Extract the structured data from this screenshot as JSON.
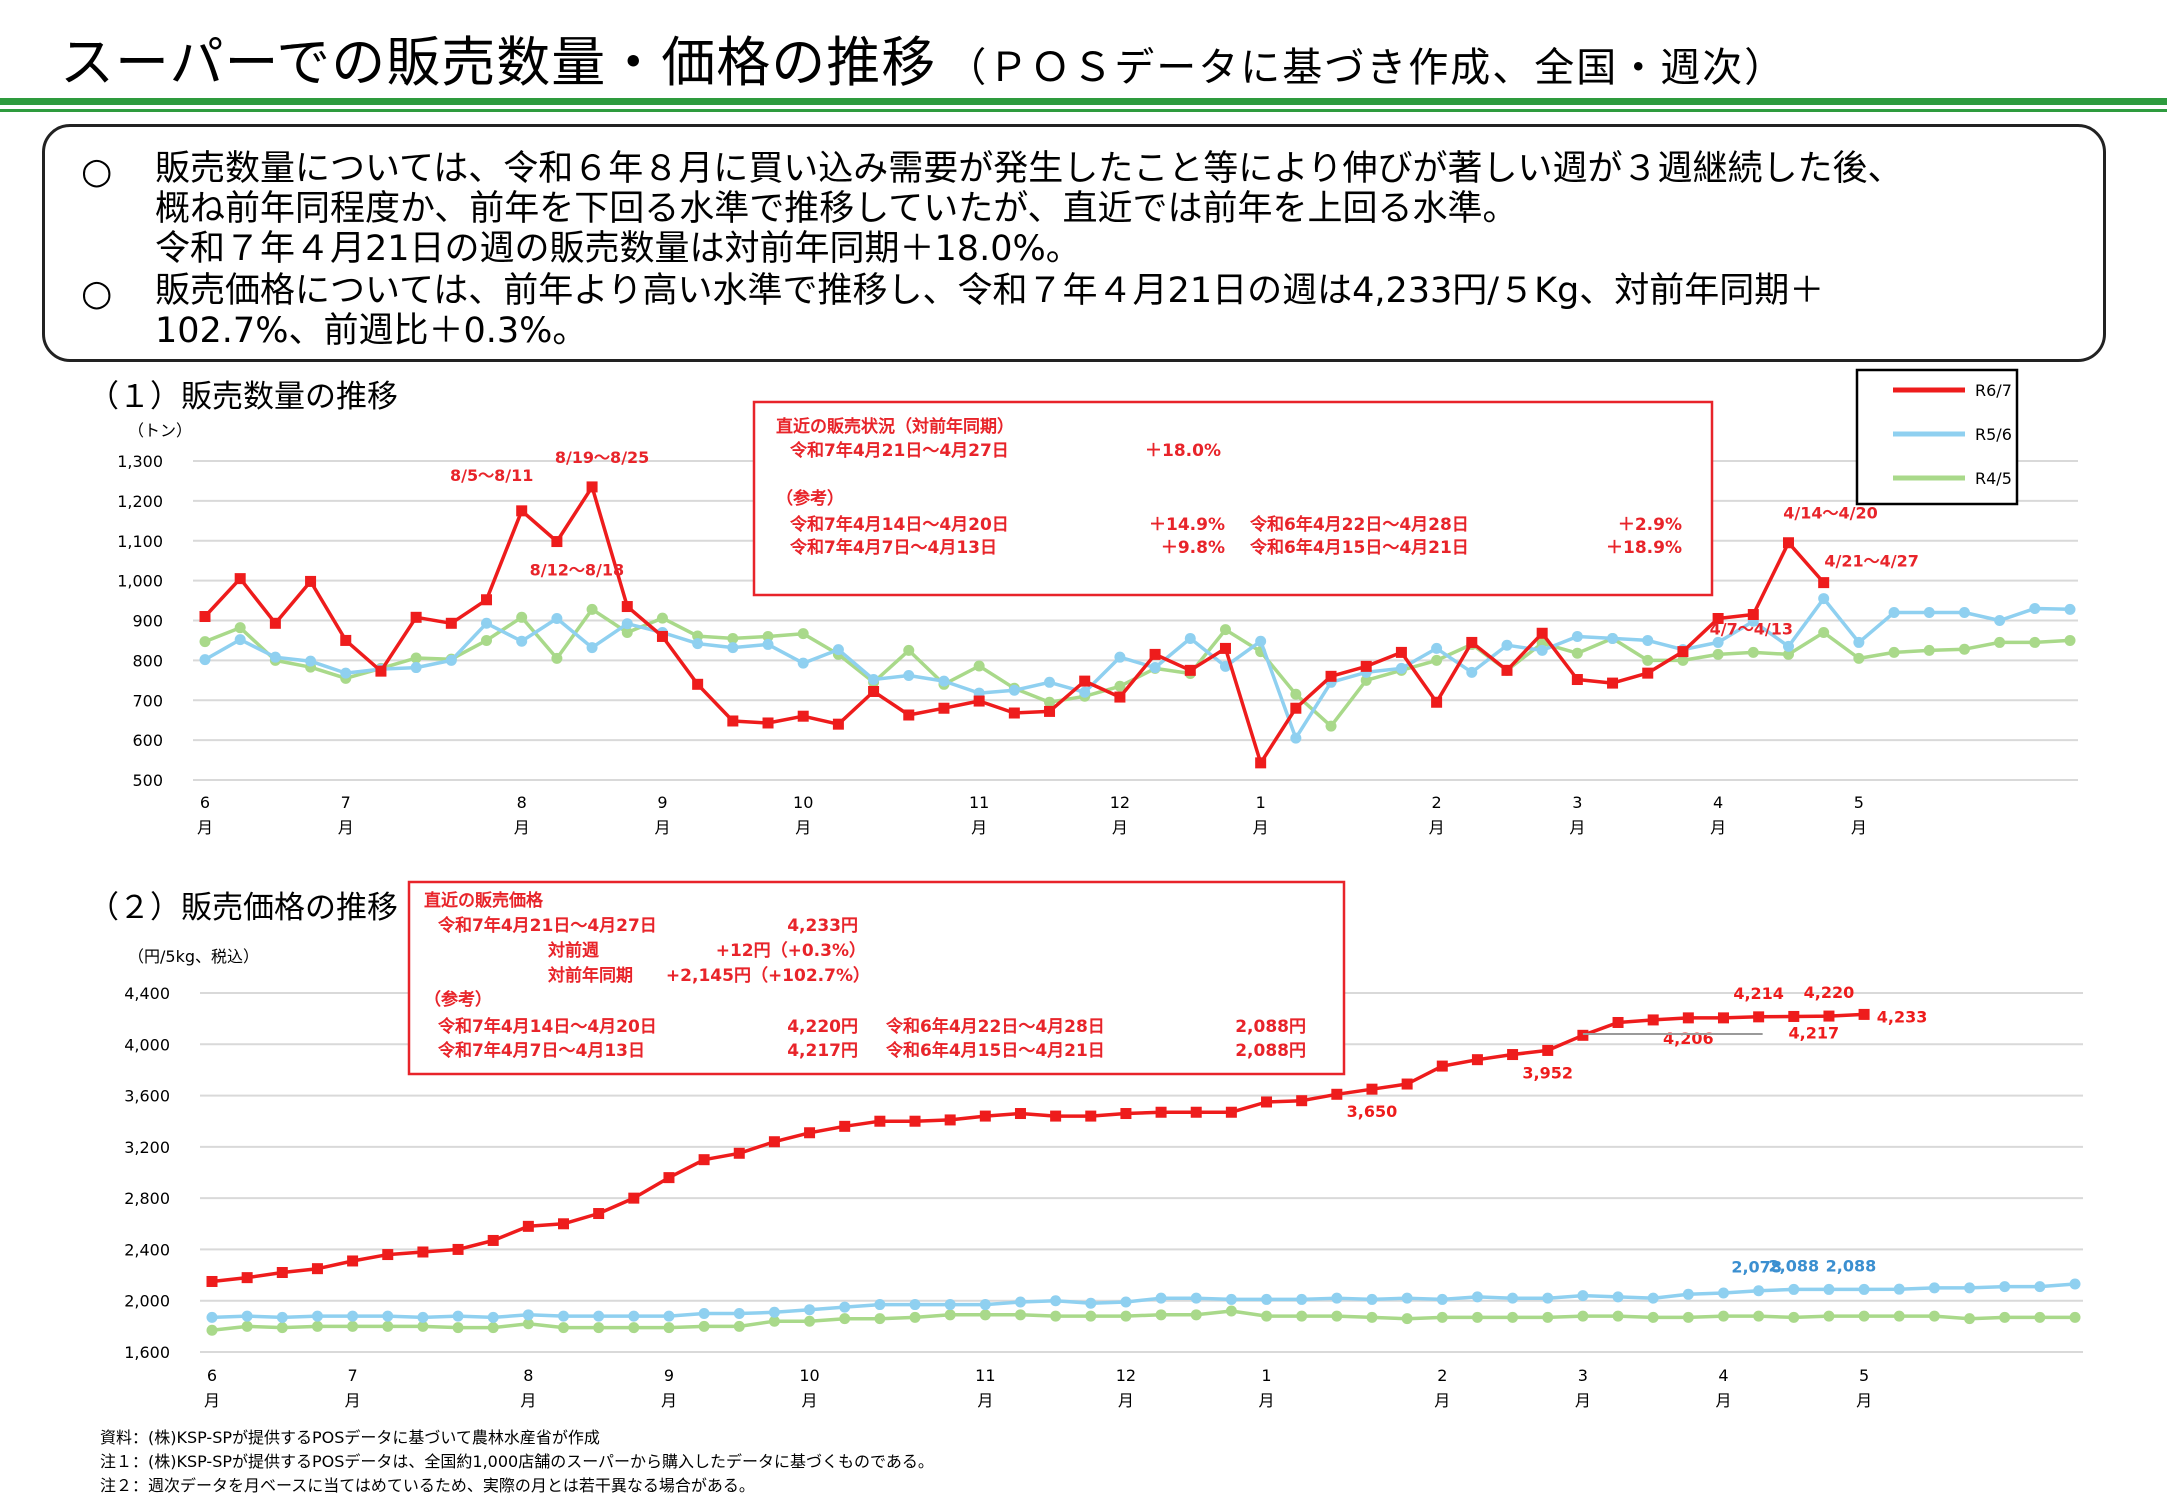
{
  "title": "スーパーでの販売数量・価格の推移",
  "subtitle": "（ＰＯＳデータに基づき作成、全国・週次）",
  "summary": {
    "bullet": "○",
    "item1": "販売数量については、令和６年８月に買い込み需要が発生したこと等により伸びが著しい週が３週継続した後、\n概ね前年同程度か、前年を下回る水準で推移していたが、直近では前年を上回る水準。\n令和７年４月21日の週の販売数量は対前年同期＋18.0%。",
    "item2": "販売価格については、前年より高い水準で推移し、令和７年４月21日の週は4,233円/５Kg、対前年同期＋\n102.7%、前週比＋0.3%。"
  },
  "colors": {
    "r67": "#ee1c1c",
    "r56": "#8fd0f0",
    "r45": "#a9d98a",
    "accent_green": "#2e9b3e",
    "grid": "#d9d9d9",
    "box_red": "#e8242a"
  },
  "chart_data": [
    {
      "type": "line",
      "title": "（１）販売数量の推移",
      "ylabel": "（トン）",
      "ylim": [
        500,
        1300
      ],
      "yticks": [
        "1,300",
        "1,200",
        "1,100",
        "1,000",
        "900",
        "800",
        "700",
        "600",
        "500"
      ],
      "ytick_values": [
        1300,
        1200,
        1100,
        1000,
        900,
        800,
        700,
        600,
        500
      ],
      "months": [
        "6",
        "7",
        "8",
        "9",
        "10",
        "11",
        "12",
        "1",
        "2",
        "3",
        "4",
        "5"
      ],
      "month_suffix": "月",
      "month_week_index": [
        0,
        4,
        9,
        13,
        17,
        22,
        26,
        30,
        35,
        39,
        43,
        47
      ],
      "legend_placement": "top-right",
      "series": [
        {
          "name": "R6/7",
          "color": "#ee1c1c",
          "values": [
            910,
            1005,
            893,
            998,
            850,
            773,
            908,
            893,
            952,
            1175,
            1098,
            1235,
            935,
            860,
            740,
            648,
            643,
            660,
            640,
            722,
            663,
            680,
            698,
            668,
            672,
            748,
            708,
            815,
            775,
            830,
            543,
            680,
            760,
            785,
            820,
            695,
            845,
            775,
            868,
            752,
            743,
            768,
            822,
            905,
            915,
            1095,
            995
          ]
        },
        {
          "name": "R5/6",
          "color": "#8fd0f0",
          "values": [
            802,
            852,
            808,
            798,
            768,
            778,
            782,
            800,
            893,
            848,
            905,
            832,
            892,
            870,
            842,
            832,
            840,
            793,
            827,
            752,
            762,
            748,
            718,
            725,
            745,
            720,
            808,
            782,
            855,
            785,
            848,
            605,
            745,
            770,
            780,
            830,
            770,
            838,
            825,
            860,
            855,
            850,
            827,
            845,
            898,
            835,
            955,
            845,
            920,
            920,
            920,
            900,
            930,
            928
          ]
        },
        {
          "name": "R4/5",
          "color": "#a9d98a",
          "values": [
            847,
            882,
            800,
            783,
            755,
            780,
            806,
            803,
            850,
            908,
            805,
            928,
            870,
            906,
            861,
            855,
            860,
            867,
            815,
            745,
            825,
            740,
            786,
            730,
            695,
            710,
            735,
            780,
            767,
            877,
            822,
            715,
            635,
            750,
            775,
            800,
            840,
            775,
            843,
            818,
            855,
            800,
            800,
            815,
            820,
            815,
            870,
            805,
            820,
            825,
            828,
            845,
            845,
            850
          ]
        }
      ],
      "annotations": [
        {
          "text": "8/5～8/11",
          "week": 9,
          "series": "R6/7"
        },
        {
          "text": "8/12～8/18",
          "week": 10,
          "series": "R6/7"
        },
        {
          "text": "8/19～8/25",
          "week": 11,
          "series": "R6/7"
        },
        {
          "text": "4/7～4/13",
          "week": 44,
          "series": "R6/7"
        },
        {
          "text": "4/14～4/20",
          "week": 45,
          "series": "R6/7"
        },
        {
          "text": "4/21～4/27",
          "week": 46,
          "series": "R6/7"
        }
      ],
      "infobox": {
        "heading": "直近の販売状況（対前年同期）",
        "latest_period": "令和7年4月21日～4月27日",
        "latest_value": "＋18.0%",
        "ref_heading": "（参考）",
        "ref_rows": [
          [
            "令和7年4月14日～4月20日",
            "＋14.9%",
            "令和6年4月22日～4月28日",
            "＋2.9%"
          ],
          [
            "令和7年4月7日～4月13日",
            "＋9.8%",
            "令和6年4月15日～4月21日",
            "＋18.9%"
          ]
        ]
      }
    },
    {
      "type": "line",
      "title": "（２）販売価格の推移",
      "ylabel": "（円/5kg、税込）",
      "ylim": [
        1600,
        4400
      ],
      "yticks": [
        "4,400",
        "4,000",
        "3,600",
        "3,200",
        "2,800",
        "2,400",
        "2,000",
        "1,600"
      ],
      "ytick_values": [
        4400,
        4000,
        3600,
        3200,
        2800,
        2400,
        2000,
        1600
      ],
      "months": [
        "6",
        "7",
        "8",
        "9",
        "10",
        "11",
        "12",
        "1",
        "2",
        "3",
        "4",
        "5"
      ],
      "month_suffix": "月",
      "month_week_index": [
        0,
        4,
        9,
        13,
        17,
        22,
        26,
        30,
        35,
        39,
        43,
        47
      ],
      "series": [
        {
          "name": "R6/7",
          "color": "#ee1c1c",
          "values": [
            2150,
            2180,
            2220,
            2250,
            2310,
            2360,
            2380,
            2400,
            2470,
            2580,
            2600,
            2680,
            2800,
            2960,
            3100,
            3150,
            3240,
            3310,
            3360,
            3400,
            3400,
            3410,
            3440,
            3460,
            3440,
            3440,
            3460,
            3470,
            3470,
            3470,
            3550,
            3560,
            3610,
            3650,
            3690,
            3830,
            3880,
            3920,
            3952,
            4070,
            4170,
            4190,
            4206,
            4206,
            4214,
            4217,
            4220,
            4233
          ]
        },
        {
          "name": "R5/6",
          "color": "#8fd0f0",
          "values": [
            1870,
            1880,
            1870,
            1880,
            1880,
            1880,
            1870,
            1880,
            1870,
            1890,
            1880,
            1880,
            1880,
            1880,
            1900,
            1900,
            1910,
            1930,
            1950,
            1970,
            1970,
            1970,
            1970,
            1990,
            2000,
            1980,
            1990,
            2020,
            2020,
            2010,
            2010,
            2010,
            2020,
            2010,
            2020,
            2010,
            2030,
            2020,
            2020,
            2040,
            2030,
            2020,
            2050,
            2060,
            2078,
            2088,
            2088,
            2088,
            2090,
            2100,
            2100,
            2110,
            2110,
            2130
          ]
        },
        {
          "name": "R4/5",
          "color": "#a9d98a",
          "values": [
            1770,
            1800,
            1790,
            1800,
            1800,
            1800,
            1800,
            1790,
            1790,
            1820,
            1790,
            1790,
            1790,
            1790,
            1800,
            1800,
            1840,
            1840,
            1860,
            1860,
            1870,
            1890,
            1890,
            1890,
            1880,
            1880,
            1880,
            1890,
            1890,
            1920,
            1880,
            1880,
            1880,
            1870,
            1860,
            1870,
            1870,
            1870,
            1870,
            1880,
            1880,
            1870,
            1870,
            1880,
            1880,
            1870,
            1880,
            1880,
            1880,
            1880,
            1860,
            1870,
            1870,
            1870
          ]
        }
      ],
      "value_labels": [
        {
          "text": "3,650",
          "week": 33,
          "series": "R6/7"
        },
        {
          "text": "3,952",
          "week": 38,
          "series": "R6/7"
        },
        {
          "text": "4,206",
          "week": 42,
          "series": "R6/7"
        },
        {
          "text": "4,214",
          "week": 44,
          "series": "R6/7"
        },
        {
          "text": "4,217",
          "week": 45,
          "series": "R6/7"
        },
        {
          "text": "4,220",
          "week": 46,
          "series": "R6/7"
        },
        {
          "text": "4,233",
          "week": 47,
          "series": "R6/7"
        },
        {
          "text": "2,078",
          "week": 44,
          "series": "R5/6"
        },
        {
          "text": "2,088",
          "week": 45,
          "series": "R5/6"
        },
        {
          "text": "2,088",
          "week": 46,
          "series": "R5/6"
        }
      ],
      "infobox": {
        "heading": "直近の販売価格",
        "latest_period": "令和7年4月21日～4月27日",
        "latest_value": "4,233円",
        "wow_label": "対前週",
        "wow_value": "+12円（+0.3%）",
        "yoy_label": "対前年同期",
        "yoy_value": "+2,145円（+102.7%）",
        "ref_heading": "（参考）",
        "ref_rows": [
          [
            "令和7年4月14日～4月20日",
            "4,220円",
            "令和6年4月22日～4月28日",
            "2,088円"
          ],
          [
            "令和7年4月7日～4月13日",
            "4,217円",
            "令和6年4月15日～4月21日",
            "2,088円"
          ]
        ]
      }
    }
  ],
  "footnotes": [
    "資料：(株)KSP-SPが提供するPOSデータに基づいて農林水産省が作成",
    "注１：(株)KSP-SPが提供するPOSデータは、全国約1,000店舗のスーパーから購入したデータに基づくものである。",
    "注２：週次データを月ベースに当てはめているため、実際の月とは若干異なる場合がある。"
  ]
}
